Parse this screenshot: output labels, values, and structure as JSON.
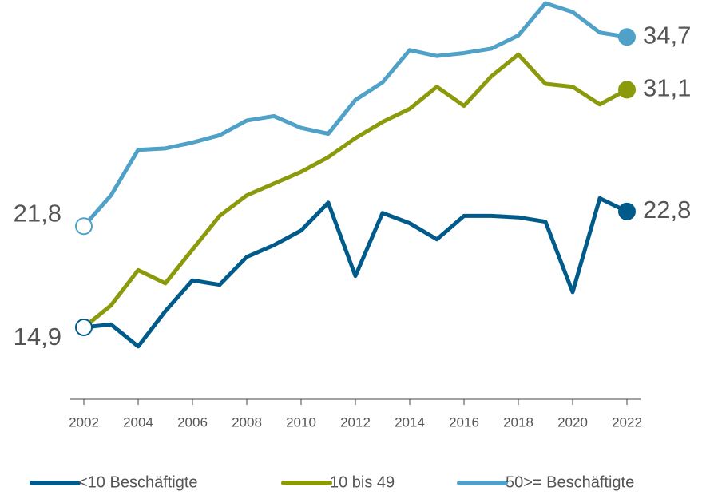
{
  "chart_data": {
    "type": "line",
    "x": [
      2002,
      2003,
      2004,
      2005,
      2006,
      2007,
      2008,
      2009,
      2010,
      2011,
      2012,
      2013,
      2014,
      2015,
      2016,
      2017,
      2018,
      2019,
      2020,
      2021,
      2022
    ],
    "xlim": [
      2001.5,
      2022.5
    ],
    "xticks": [
      2002,
      2004,
      2006,
      2008,
      2010,
      2012,
      2014,
      2016,
      2018,
      2020,
      2022
    ],
    "ylim": [
      10,
      37
    ],
    "series": [
      {
        "name": "<10 Beschäftigte",
        "color": "#005b8a",
        "values": [
          14.9,
          15.1,
          13.6,
          16.0,
          18.1,
          17.8,
          19.7,
          20.5,
          21.5,
          23.4,
          18.4,
          22.7,
          22.0,
          20.9,
          22.5,
          22.5,
          22.4,
          22.1,
          17.3,
          23.7,
          22.8
        ],
        "value_labels": [
          "14,9",
          null,
          null,
          null,
          null,
          null,
          null,
          null,
          null,
          null,
          null,
          null,
          null,
          null,
          null,
          null,
          null,
          null,
          null,
          null,
          "22,8"
        ]
      },
      {
        "name": "10 bis 49",
        "color": "#8a9a0b",
        "values": [
          14.9,
          16.4,
          18.8,
          17.9,
          20.2,
          22.5,
          23.9,
          24.7,
          25.5,
          26.5,
          27.8,
          28.9,
          29.8,
          31.3,
          30.0,
          32.0,
          33.5,
          31.5,
          31.3,
          30.1,
          31.1
        ],
        "value_labels": [
          null,
          null,
          null,
          null,
          null,
          null,
          null,
          null,
          null,
          null,
          null,
          null,
          null,
          null,
          null,
          null,
          null,
          null,
          null,
          null,
          "31,1"
        ]
      },
      {
        "name": "50>= Beschäftigte",
        "color": "#4fa1c8",
        "values": [
          21.8,
          23.9,
          27.0,
          27.1,
          27.5,
          28.0,
          29.0,
          29.3,
          28.5,
          28.1,
          30.4,
          31.6,
          33.8,
          33.4,
          33.6,
          33.9,
          34.8,
          37.0,
          36.4,
          35.0,
          34.7
        ],
        "value_labels": [
          "21,8",
          null,
          null,
          null,
          null,
          null,
          null,
          null,
          null,
          null,
          null,
          null,
          null,
          null,
          null,
          null,
          null,
          null,
          null,
          null,
          "34,7"
        ]
      }
    ],
    "legend": "bottom"
  }
}
